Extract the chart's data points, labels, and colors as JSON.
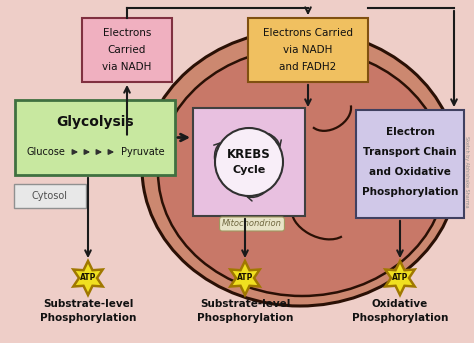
{
  "bg_color": "#eecec8",
  "mito_outer_color": "#cc8870",
  "mito_inner_color": "#d49888",
  "mito_fill2": "#c07060",
  "krebs_box_color": "#e8c0e0",
  "glycolysis_box_color": "#c8e8a0",
  "nadh_left_box_color": "#f0b0c0",
  "nadh_right_box_color": "#f0c060",
  "etc_box_color": "#d0c8e8",
  "cytosol_box_color": "#e8e8e8",
  "mito_label_bg": "#e8e4c8",
  "mito_label_edge": "#a09860",
  "atp_color": "#f0e020",
  "atp_edge_color": "#a07800",
  "arrow_color": "#1a1a1a",
  "text_dark": "#111111",
  "text_gray": "#606060",
  "watermark": "Sketch by Abhishake Sharma",
  "nadh_left_text": [
    "Electrons",
    "Carried",
    "via NADH"
  ],
  "nadh_right_text": [
    "Electrons Carried",
    "via NADH",
    "and FADH2"
  ],
  "glycolysis_title": "Glycolysis",
  "glucose_label": "Glucose",
  "pyruvate_label": "Pyruvate",
  "krebs_line1": "KREBS",
  "krebs_line2": "Cycle",
  "etc_lines": [
    "Electron",
    "Transport Chain",
    "and Oxidative",
    "Phosphorylation"
  ],
  "cytosol_label": "Cytosol",
  "mito_label": "Mitochondrion",
  "atp_label": "ATP",
  "bottom_labels": [
    [
      "Substrate-level",
      "Phosphorylation"
    ],
    [
      "Substrate-level",
      "Phosphorylation"
    ],
    [
      "Oxidative",
      "Phosphorylation"
    ]
  ]
}
